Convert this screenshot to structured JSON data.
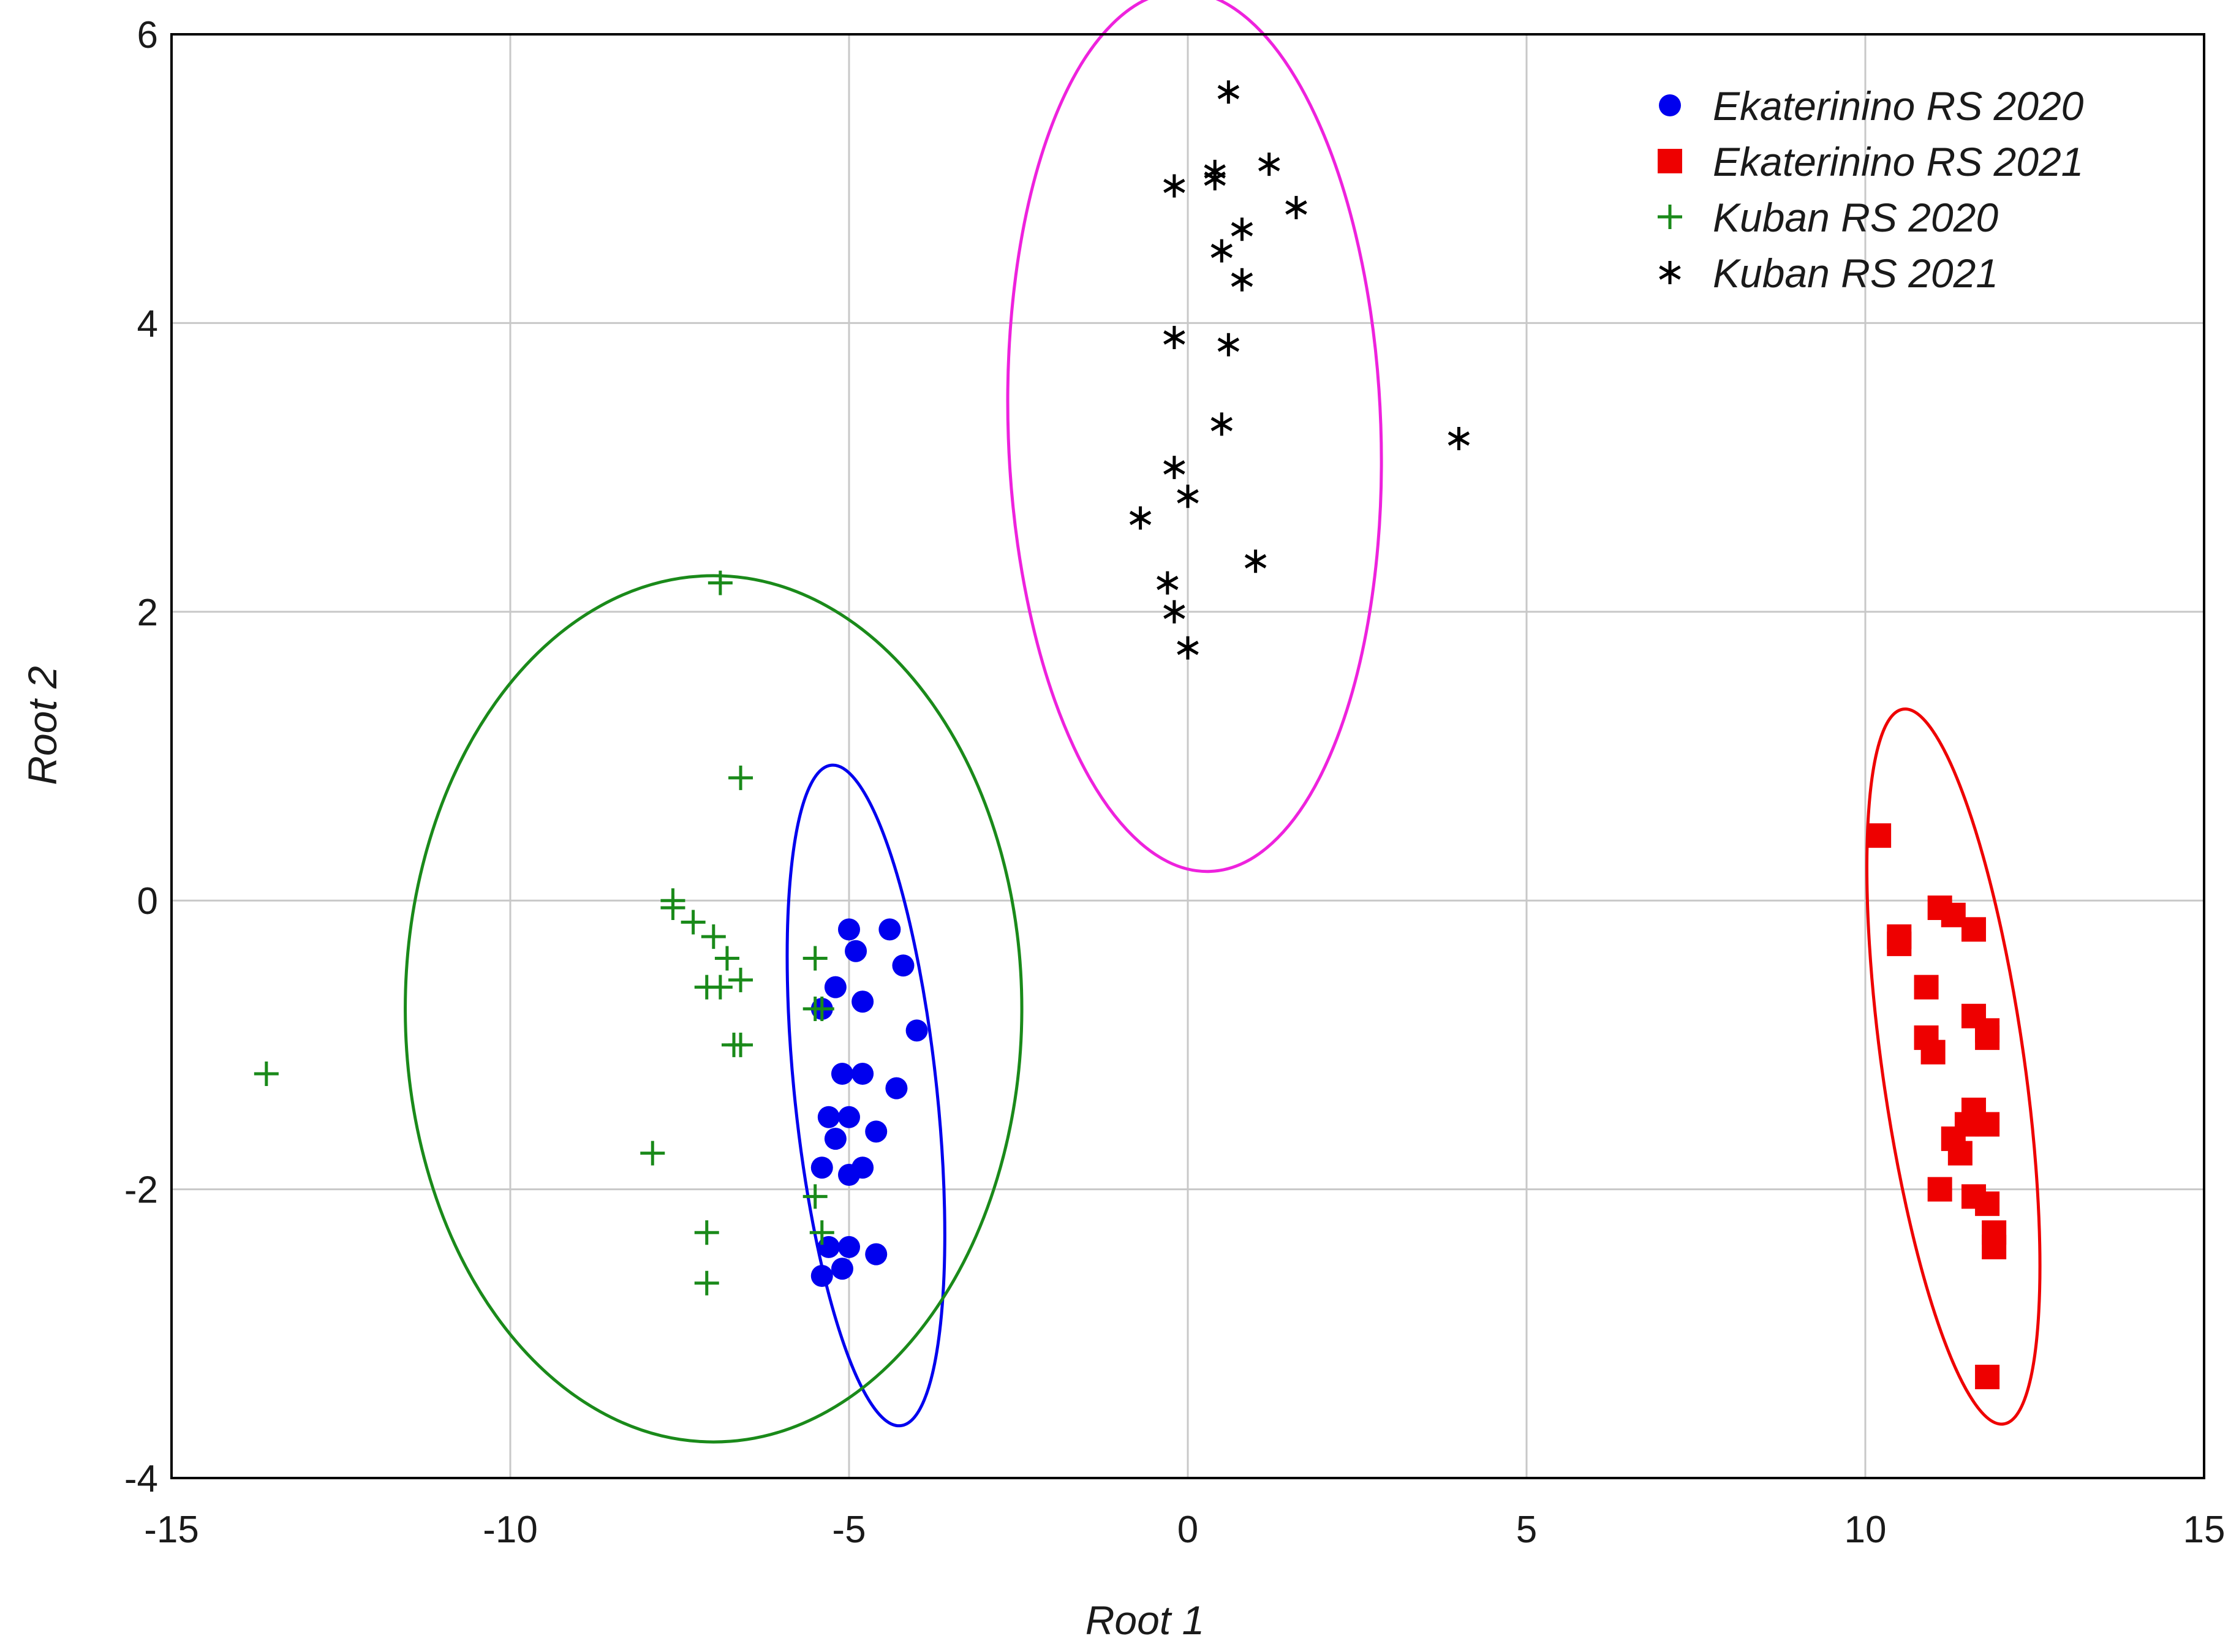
{
  "chart_data": {
    "type": "scatter",
    "xlabel": "Root 1",
    "ylabel": "Root 2",
    "xlim": [
      -15,
      15
    ],
    "ylim": [
      -4,
      6
    ],
    "xticks": [
      -15,
      -10,
      -5,
      0,
      5,
      10,
      15
    ],
    "yticks": [
      -4,
      -2,
      0,
      2,
      4,
      6
    ],
    "grid": true,
    "legend_position": "top-right",
    "series": [
      {
        "name": "Ekaterinino RS 2020",
        "marker": "circle",
        "color": "#0000ee",
        "points": [
          [
            -5.0,
            -0.2
          ],
          [
            -4.4,
            -0.2
          ],
          [
            -4.9,
            -0.35
          ],
          [
            -5.2,
            -0.6
          ],
          [
            -4.2,
            -0.45
          ],
          [
            -4.8,
            -0.7
          ],
          [
            -5.4,
            -0.75
          ],
          [
            -4.0,
            -0.9
          ],
          [
            -5.1,
            -1.2
          ],
          [
            -4.8,
            -1.2
          ],
          [
            -4.3,
            -1.3
          ],
          [
            -5.3,
            -1.5
          ],
          [
            -5.0,
            -1.5
          ],
          [
            -4.6,
            -1.6
          ],
          [
            -5.2,
            -1.65
          ],
          [
            -5.4,
            -1.85
          ],
          [
            -4.8,
            -1.85
          ],
          [
            -5.0,
            -1.9
          ],
          [
            -5.3,
            -2.4
          ],
          [
            -5.0,
            -2.4
          ],
          [
            -4.6,
            -2.45
          ],
          [
            -5.1,
            -2.55
          ],
          [
            -5.4,
            -2.6
          ]
        ],
        "ellipse": {
          "cx": -4.75,
          "cy": -1.35,
          "rx": 1.05,
          "ry": 2.3,
          "angle_deg": -6
        }
      },
      {
        "name": "Ekaterinino RS 2021",
        "marker": "square",
        "color": "#ee0000",
        "points": [
          [
            10.2,
            0.45
          ],
          [
            10.5,
            -0.25
          ],
          [
            10.5,
            -0.3
          ],
          [
            11.1,
            -0.05
          ],
          [
            11.3,
            -0.1
          ],
          [
            11.6,
            -0.2
          ],
          [
            10.9,
            -0.6
          ],
          [
            11.6,
            -0.8
          ],
          [
            11.8,
            -0.9
          ],
          [
            10.9,
            -0.95
          ],
          [
            11.0,
            -1.05
          ],
          [
            11.8,
            -0.95
          ],
          [
            11.6,
            -1.45
          ],
          [
            11.5,
            -1.55
          ],
          [
            11.8,
            -1.55
          ],
          [
            11.3,
            -1.65
          ],
          [
            11.4,
            -1.75
          ],
          [
            11.1,
            -2.0
          ],
          [
            11.6,
            -2.05
          ],
          [
            11.8,
            -2.1
          ],
          [
            11.9,
            -2.3
          ],
          [
            11.9,
            -2.4
          ],
          [
            11.8,
            -3.3
          ]
        ],
        "ellipse": {
          "cx": 11.3,
          "cy": -1.15,
          "rx": 1.05,
          "ry": 2.5,
          "angle_deg": -8
        }
      },
      {
        "name": "Kuban RS 2020",
        "marker": "plus",
        "color": "#1a8a1a",
        "points": [
          [
            -6.9,
            2.2
          ],
          [
            -6.6,
            0.85
          ],
          [
            -7.6,
            0.0
          ],
          [
            -7.6,
            -0.05
          ],
          [
            -7.3,
            -0.15
          ],
          [
            -7.0,
            -0.25
          ],
          [
            -6.8,
            -0.4
          ],
          [
            -5.5,
            -0.4
          ],
          [
            -6.6,
            -0.55
          ],
          [
            -7.1,
            -0.6
          ],
          [
            -6.9,
            -0.6
          ],
          [
            -5.4,
            -0.75
          ],
          [
            -5.5,
            -0.75
          ],
          [
            -6.7,
            -1.0
          ],
          [
            -6.6,
            -1.0
          ],
          [
            -13.6,
            -1.2
          ],
          [
            -7.9,
            -1.75
          ],
          [
            -5.5,
            -2.05
          ],
          [
            -5.4,
            -2.3
          ],
          [
            -7.1,
            -2.3
          ],
          [
            -7.1,
            -2.65
          ]
        ],
        "ellipse": {
          "cx": -7.0,
          "cy": -0.75,
          "rx": 4.55,
          "ry": 3.0,
          "angle_deg": 0
        }
      },
      {
        "name": "Kuban RS 2021",
        "marker": "asterisk",
        "color": "#000000",
        "points": [
          [
            0.6,
            5.6
          ],
          [
            1.2,
            5.1
          ],
          [
            -0.2,
            4.95
          ],
          [
            0.4,
            5.05
          ],
          [
            0.4,
            5.0
          ],
          [
            1.6,
            4.8
          ],
          [
            0.8,
            4.65
          ],
          [
            0.5,
            4.5
          ],
          [
            0.8,
            4.3
          ],
          [
            -0.2,
            3.9
          ],
          [
            0.6,
            3.85
          ],
          [
            4.0,
            3.2
          ],
          [
            0.5,
            3.3
          ],
          [
            -0.2,
            3.0
          ],
          [
            0.0,
            2.8
          ],
          [
            -0.7,
            2.65
          ],
          [
            1.0,
            2.35
          ],
          [
            -0.3,
            2.2
          ],
          [
            -0.2,
            2.0
          ],
          [
            0.0,
            1.75
          ]
        ],
        "ellipse": {
          "cx": 0.1,
          "cy": 3.25,
          "rx": 2.75,
          "ry": 3.05,
          "angle_deg": -2
        }
      }
    ]
  }
}
